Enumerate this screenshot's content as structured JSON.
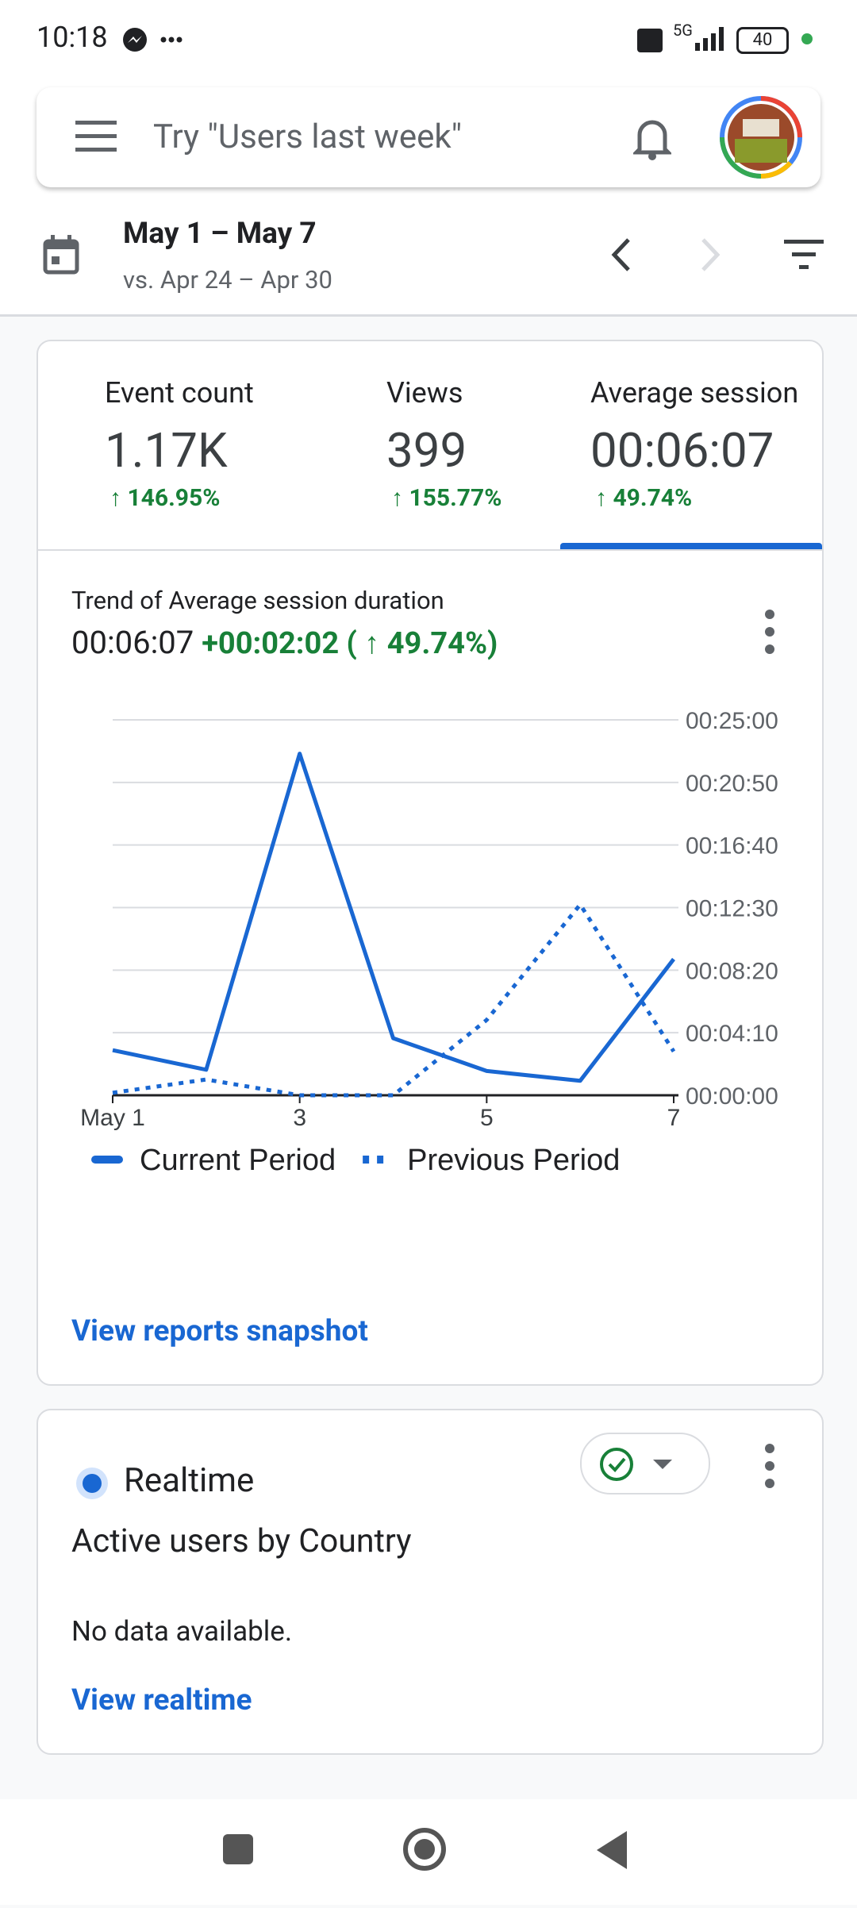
{
  "status_bar": {
    "time": "10:18",
    "network": "5G",
    "battery": "40"
  },
  "search": {
    "placeholder": "Try \"Users last week\""
  },
  "date_range": {
    "current": "May 1 – May 7",
    "comparison": "vs. Apr 24 – Apr 30"
  },
  "metrics": [
    {
      "label": "Event count",
      "value": "1.17K",
      "change": "↑ 146.95%"
    },
    {
      "label": "Views",
      "value": "399",
      "change": "↑ 155.77%"
    },
    {
      "label": "Average session",
      "value": "00:06:07",
      "change": "↑ 49.74%"
    }
  ],
  "trend": {
    "title": "Trend of Average session duration",
    "value": "00:06:07",
    "change": "+00:02:02 ( ↑ 49.74%)"
  },
  "chart_data": {
    "type": "line",
    "categories": [
      "May 1",
      null,
      "3",
      null,
      "5",
      null,
      "7"
    ],
    "series": [
      {
        "name": "Current Period",
        "color": "#1967d2",
        "style": "solid",
        "values": [
          180,
          102,
          1365,
          228,
          97,
          58,
          544
        ]
      },
      {
        "name": "Previous Period",
        "color": "#1967d2",
        "style": "dotted",
        "values": [
          10,
          63,
          0,
          0,
          301,
          762,
          175
        ]
      }
    ],
    "ylim": [
      0,
      1500
    ],
    "yticks": [
      {
        "value": 0,
        "label": "00:00:00"
      },
      {
        "value": 250,
        "label": "00:04:10"
      },
      {
        "value": 500,
        "label": "00:08:20"
      },
      {
        "value": 750,
        "label": "00:12:30"
      },
      {
        "value": 1000,
        "label": "00:16:40"
      },
      {
        "value": 1250,
        "label": "00:20:50"
      },
      {
        "value": 1500,
        "label": "00:25:00"
      }
    ],
    "grid": true,
    "legend": "bottom"
  },
  "snapshot_link": "View reports snapshot",
  "realtime": {
    "title": "Realtime",
    "subtitle": "Active users by Country",
    "empty": "No data available.",
    "link": "View realtime"
  }
}
